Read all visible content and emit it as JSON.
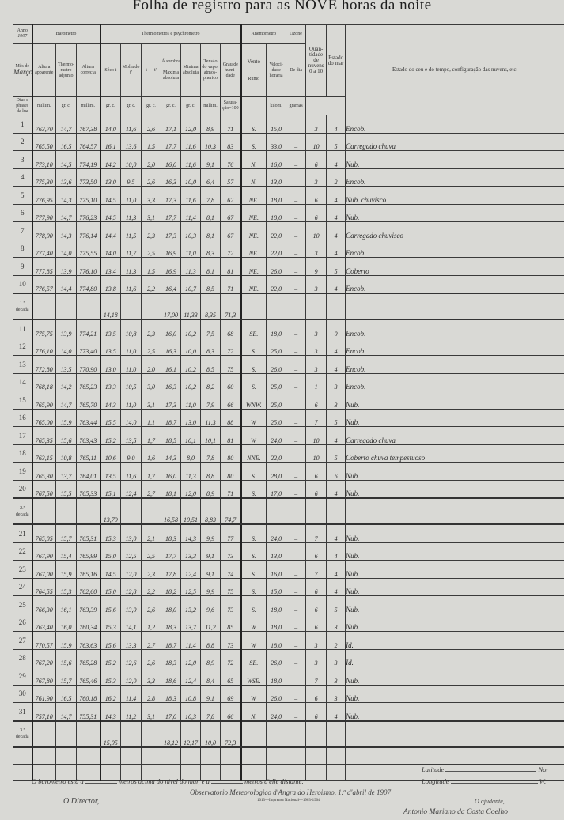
{
  "title": "Folha de registro para as NOVE horas da noite",
  "header": {
    "anno_label": "Anno",
    "anno_value": "1907",
    "mez_label": "Mês de",
    "mez_value": "Março",
    "dias_label": "Dias e phases da lua",
    "barometro": "Barometro",
    "altura_apparente": "Altura apparente",
    "thermometro_adjunto": "Thermo-metro adjunto",
    "altura_correcta": "Altura correcta",
    "thermometros": "Thermometros e psychrometro",
    "secco": "Sêco t",
    "molhado": "Molhado t'",
    "diff": "t — t'",
    "a_sombra": "Á sombra",
    "maxima": "Maxima absoluta",
    "minima": "Minima absoluta",
    "tensao": "Tensão do vapor atmos-pherico",
    "humidade": "Grau de humi-dade",
    "anemometro": "Anemometro",
    "vento": "Vento",
    "rumo": "Rumo",
    "velocidade": "Veloci-dade horaria",
    "ozone": "Ozone",
    "de_dia": "De dia",
    "nuvens": "Quan-tidade de nuvens 0 a 10",
    "mar": "Estado do mar",
    "estado_ceu": "Estado do ceu e do tempo, configuração das nuvens, etc.",
    "units": [
      "millim.",
      "gr. c.",
      "millim.",
      "gr. c.",
      "gr. c.",
      "gr. c.",
      "gr. c.",
      "gr. c.",
      "millim.",
      "Satura-ção=100",
      "",
      "kilom.",
      "gramas"
    ]
  },
  "rows": [
    [
      "1",
      "763,70",
      "14,7",
      "767,38",
      "14,0",
      "11,6",
      "2,6",
      "17,1",
      "12,0",
      "8,9",
      "71",
      "S.",
      "15,0",
      "–",
      "3",
      "4",
      "Encob."
    ],
    [
      "2",
      "765,50",
      "16,5",
      "764,57",
      "16,1",
      "13,6",
      "1,5",
      "17,7",
      "11,6",
      "10,3",
      "83",
      "S.",
      "33,0",
      "–",
      "10",
      "5",
      "Carregado chuva"
    ],
    [
      "3",
      "773,10",
      "14,5",
      "774,19",
      "14,2",
      "10,0",
      "2,0",
      "16,0",
      "11,6",
      "9,1",
      "76",
      "N.",
      "16,0",
      "–",
      "6",
      "4",
      "Nub."
    ],
    [
      "4",
      "775,30",
      "13,6",
      "773,50",
      "13,0",
      "9,5",
      "2,6",
      "16,3",
      "10,0",
      "6,4",
      "57",
      "N.",
      "13,0",
      "–",
      "3",
      "2",
      "Encob."
    ],
    [
      "5",
      "776,95",
      "14,3",
      "775,10",
      "14,5",
      "11,0",
      "3,3",
      "17,3",
      "11,6",
      "7,8",
      "62",
      "NE.",
      "18,0",
      "–",
      "6",
      "4",
      "Nub. chuvisco"
    ],
    [
      "6",
      "777,90",
      "14,7",
      "776,23",
      "14,5",
      "11,3",
      "3,1",
      "17,7",
      "11,4",
      "8,1",
      "67",
      "NE.",
      "18,0",
      "–",
      "6",
      "4",
      "Nub."
    ],
    [
      "7",
      "778,00",
      "14,3",
      "776,14",
      "14,4",
      "11,5",
      "2,3",
      "17,3",
      "10,3",
      "8,1",
      "67",
      "NE.",
      "22,0",
      "–",
      "10",
      "4",
      "Carregado chuvisco"
    ],
    [
      "8",
      "777,40",
      "14,0",
      "775,55",
      "14,0",
      "11,7",
      "2,5",
      "16,9",
      "11,0",
      "8,3",
      "72",
      "NE.",
      "22,0",
      "–",
      "3",
      "4",
      "Encob."
    ],
    [
      "9",
      "777,85",
      "13,9",
      "776,10",
      "13,4",
      "11,3",
      "1,5",
      "16,9",
      "11,3",
      "8,1",
      "81",
      "NE.",
      "26,0",
      "–",
      "9",
      "5",
      "Coberto"
    ],
    [
      "10",
      "776,57",
      "14,4",
      "774,80",
      "13,8",
      "11,6",
      "2,2",
      "16,4",
      "10,7",
      "8,5",
      "71",
      "NE.",
      "22,0",
      "–",
      "3",
      "4",
      "Encob."
    ],
    [
      "1.ª decada",
      "",
      "",
      "",
      "14,18",
      "",
      "",
      "17,00",
      "11,33",
      "8,35",
      "71,3",
      "",
      "",
      "",
      "",
      "",
      ""
    ],
    [
      "11",
      "775,75",
      "13,9",
      "774,21",
      "13,5",
      "10,8",
      "2,3",
      "16,0",
      "10,2",
      "7,5",
      "68",
      "SE.",
      "18,0",
      "–",
      "3",
      "0",
      "Encob."
    ],
    [
      "12",
      "776,10",
      "14,0",
      "773,40",
      "13,5",
      "11,0",
      "2,5",
      "16,3",
      "10,0",
      "8,3",
      "72",
      "S.",
      "25,0",
      "–",
      "3",
      "4",
      "Encob."
    ],
    [
      "13",
      "772,80",
      "13,5",
      "770,90",
      "13,0",
      "11,0",
      "2,0",
      "16,1",
      "10,2",
      "8,5",
      "75",
      "S.",
      "26,0",
      "–",
      "3",
      "4",
      "Encob."
    ],
    [
      "14",
      "768,18",
      "14,2",
      "765,23",
      "13,3",
      "10,5",
      "3,0",
      "16,3",
      "10,2",
      "8,2",
      "60",
      "S.",
      "25,0",
      "–",
      "1",
      "3",
      "Encob."
    ],
    [
      "15",
      "765,90",
      "14,7",
      "765,70",
      "14,3",
      "11,0",
      "3,1",
      "17,3",
      "11,0",
      "7,9",
      "66",
      "WNW.",
      "25,0",
      "–",
      "6",
      "3",
      "Nub."
    ],
    [
      "16",
      "765,00",
      "15,9",
      "763,44",
      "15,5",
      "14,0",
      "1,1",
      "18,7",
      "13,0",
      "11,3",
      "88",
      "W.",
      "25,0",
      "–",
      "7",
      "5",
      "Nub."
    ],
    [
      "17",
      "765,35",
      "15,6",
      "763,43",
      "15,2",
      "13,5",
      "1,7",
      "18,5",
      "10,1",
      "10,1",
      "81",
      "W.",
      "24,0",
      "–",
      "10",
      "4",
      "Carregado chuva"
    ],
    [
      "18",
      "763,15",
      "10,8",
      "765,11",
      "10,6",
      "9,0",
      "1,6",
      "14,3",
      "8,0",
      "7,8",
      "80",
      "NNE.",
      "22,0",
      "–",
      "10",
      "5",
      "Coberto chuva tempestuoso"
    ],
    [
      "19",
      "765,30",
      "13,7",
      "764,01",
      "13,5",
      "11,6",
      "1,7",
      "16,0",
      "11,3",
      "8,8",
      "80",
      "S.",
      "28,0",
      "–",
      "6",
      "6",
      "Nub."
    ],
    [
      "20",
      "767,50",
      "15,5",
      "765,33",
      "15,1",
      "12,4",
      "2,7",
      "18,1",
      "12,0",
      "8,9",
      "71",
      "S.",
      "17,0",
      "–",
      "6",
      "4",
      "Nub."
    ],
    [
      "2.ª decada",
      "",
      "",
      "",
      "13,79",
      "",
      "",
      "16,58",
      "10,51",
      "8,83",
      "74,7",
      "",
      "",
      "",
      "",
      "",
      ""
    ],
    [
      "21",
      "765,05",
      "15,7",
      "765,31",
      "15,3",
      "13,0",
      "2,1",
      "18,3",
      "14,3",
      "9,9",
      "77",
      "S.",
      "24,0",
      "–",
      "7",
      "4",
      "Nub."
    ],
    [
      "22",
      "767,90",
      "15,4",
      "765,99",
      "15,0",
      "12,5",
      "2,5",
      "17,7",
      "13,3",
      "9,1",
      "73",
      "S.",
      "13,0",
      "–",
      "6",
      "4",
      "Nub."
    ],
    [
      "23",
      "767,00",
      "15,9",
      "765,16",
      "14,5",
      "12,0",
      "2,3",
      "17,8",
      "12,4",
      "9,1",
      "74",
      "S.",
      "16,0",
      "–",
      "7",
      "4",
      "Nub."
    ],
    [
      "24",
      "764,55",
      "15,3",
      "762,60",
      "15,0",
      "12,8",
      "2,2",
      "18,2",
      "12,5",
      "9,9",
      "75",
      "S.",
      "15,0",
      "–",
      "6",
      "4",
      "Nub."
    ],
    [
      "25",
      "766,30",
      "16,1",
      "763,39",
      "15,6",
      "13,0",
      "2,6",
      "18,0",
      "13,2",
      "9,6",
      "73",
      "S.",
      "18,0",
      "–",
      "6",
      "5",
      "Nub."
    ],
    [
      "26",
      "763,40",
      "16,0",
      "760,34",
      "15,3",
      "14,1",
      "1,2",
      "18,3",
      "13,7",
      "11,2",
      "85",
      "W.",
      "18,0",
      "–",
      "6",
      "3",
      "Nub."
    ],
    [
      "27",
      "770,57",
      "15,9",
      "763,63",
      "15,6",
      "13,3",
      "2,7",
      "18,7",
      "11,4",
      "8,8",
      "73",
      "W.",
      "18,0",
      "–",
      "3",
      "2",
      "Id."
    ],
    [
      "28",
      "767,20",
      "15,6",
      "765,28",
      "15,2",
      "12,6",
      "2,6",
      "18,3",
      "12,0",
      "8,9",
      "72",
      "SE.",
      "26,0",
      "–",
      "3",
      "3",
      "Id."
    ],
    [
      "29",
      "767,80",
      "15,7",
      "765,46",
      "15,3",
      "12,0",
      "3,3",
      "18,6",
      "12,4",
      "8,4",
      "65",
      "WSE.",
      "18,0",
      "–",
      "7",
      "3",
      "Nub."
    ],
    [
      "30",
      "761,90",
      "16,5",
      "760,18",
      "16,2",
      "11,4",
      "2,8",
      "18,3",
      "10,8",
      "9,1",
      "69",
      "W.",
      "26,0",
      "–",
      "6",
      "3",
      "Nub."
    ],
    [
      "31",
      "757,10",
      "14,7",
      "755,31",
      "14,3",
      "11,2",
      "3,1",
      "17,0",
      "10,3",
      "7,8",
      "66",
      "N.",
      "24,0",
      "–",
      "6",
      "4",
      "Nub."
    ],
    [
      "3.ª decada",
      "",
      "",
      "",
      "15,05",
      "",
      "",
      "18,12",
      "12,17",
      "10,0",
      "72,3",
      "",
      "",
      "",
      "",
      "",
      ""
    ]
  ],
  "footer": {
    "barometro_text_a": "O barometro está a",
    "barometro_text_b": "metros acima do nivel do mar, e a",
    "barometro_text_c": "metros d'elle distante.",
    "latitude": "Latitude",
    "latitude_suffix": "Nor",
    "longitude": "Longitude",
    "longitude_suffix": "W.",
    "director": "O Director,",
    "place_date": "Observatorio Meteorologico d'Angra do Heroismo, 1.º d'abril de 1907",
    "imprint": "1013—Imprensa Nacional—1903-1904",
    "ajudante": "O ajudante,",
    "signature": "Antonio Mariano da Costa Coelho"
  }
}
